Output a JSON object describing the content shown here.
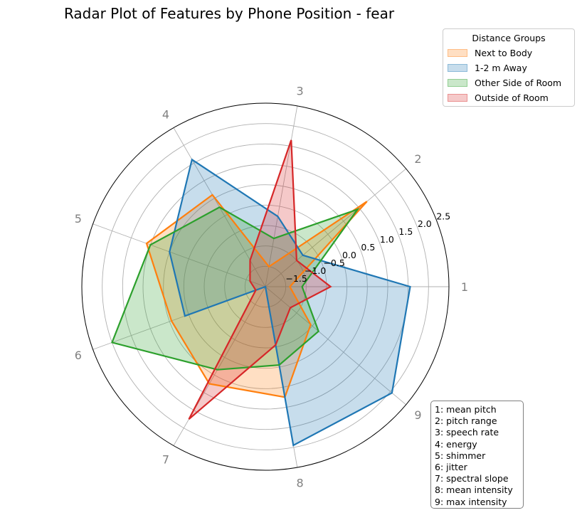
{
  "chart_data": {
    "type": "radar",
    "title": "Radar Plot of Features by Phone Position - fear",
    "axis_labels": [
      "1",
      "2",
      "3",
      "4",
      "5",
      "6",
      "7",
      "8",
      "9"
    ],
    "radial_range": [
      -2.0,
      2.5
    ],
    "radial_ticks": [
      -1.5,
      -1.0,
      -0.5,
      0.0,
      0.5,
      1.0,
      1.5,
      2.0,
      2.5
    ],
    "radial_tick_labels": [
      "−1.5",
      "−1.0",
      "−0.5",
      "0.0",
      "0.5",
      "1.0",
      "1.5",
      "2.0",
      "2.5"
    ],
    "grid": true,
    "legend": {
      "title": "Distance Groups",
      "placement": "top-right outside"
    },
    "series": [
      {
        "name": "Next to Body",
        "color": "#ff7f0e",
        "values": [
          -1.4,
          1.25,
          -1.5,
          0.6,
          1.1,
          0.45,
          0.75,
          0.75,
          -0.55
        ]
      },
      {
        "name": "1-2 m Away",
        "color": "#1f77b4",
        "values": [
          1.55,
          -0.8,
          -0.25,
          1.6,
          0.5,
          0.1,
          -2.0,
          1.95,
          2.05
        ]
      },
      {
        "name": "Other Side of Room",
        "color": "#2ca02c",
        "values": [
          -1.1,
          0.95,
          -0.8,
          0.25,
          1.0,
          2.0,
          0.35,
          -0.05,
          -0.3
        ]
      },
      {
        "name": "Outside of Room",
        "color": "#d62728",
        "values": [
          -0.4,
          -1.0,
          1.65,
          -1.25,
          -1.6,
          -1.75,
          1.75,
          -0.55,
          -1.2
        ]
      }
    ],
    "feature_legend": [
      "1: mean pitch",
      "2: pitch range",
      "3: speech rate",
      "4: energy",
      "5: shimmer",
      "6: jitter",
      "7: spectral slope",
      "8: mean intensity",
      "9: max intensity"
    ]
  }
}
